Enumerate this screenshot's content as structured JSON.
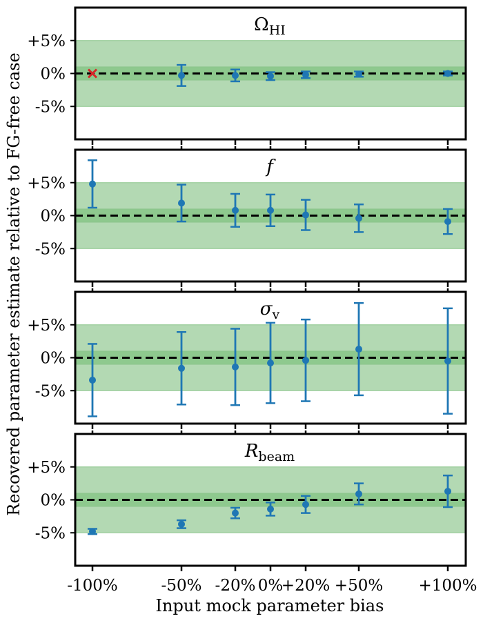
{
  "chart_data": {
    "type": "scatter",
    "xlabel": "Input mock parameter bias",
    "ylabel": "Recovered parameter estimate relative to FG-free case",
    "x_tick_labels": [
      "-100%",
      "-50%",
      "-20%",
      "0%",
      "+20%",
      "+50%",
      "+100%"
    ],
    "x_values": [
      -100,
      -50,
      -20,
      0,
      20,
      50,
      100
    ],
    "y_tick_labels": [
      "+5%",
      "0%",
      "-5%"
    ],
    "y_tick_values": [
      5,
      0,
      -5
    ],
    "ylim": [
      -10,
      10
    ],
    "reference_line": 0,
    "bands": [
      {
        "range": [
          -5,
          5
        ],
        "color": "#b3d9b3"
      },
      {
        "range": [
          -1,
          1
        ],
        "color": "#8ec98e"
      }
    ],
    "colors": {
      "points": "#1f77b4",
      "marker_x": "#d62728",
      "reference": "#000000"
    },
    "panels": [
      {
        "title_main": "Ω",
        "title_sub": "HI",
        "title_italic": false,
        "points": [
          {
            "x": -100,
            "y": 0.0,
            "err": 0.0,
            "marker": "x"
          },
          {
            "x": -50,
            "y": -0.3,
            "err": 1.6
          },
          {
            "x": -20,
            "y": -0.3,
            "err": 0.9
          },
          {
            "x": 0,
            "y": -0.4,
            "err": 0.6
          },
          {
            "x": 20,
            "y": -0.2,
            "err": 0.5
          },
          {
            "x": 50,
            "y": -0.1,
            "err": 0.4
          },
          {
            "x": 100,
            "y": 0.0,
            "err": 0.3
          }
        ]
      },
      {
        "title_main": "f",
        "title_sub": "",
        "title_italic": true,
        "points": [
          {
            "x": -100,
            "y": 4.8,
            "err": 3.6
          },
          {
            "x": -50,
            "y": 1.9,
            "err": 2.8
          },
          {
            "x": -20,
            "y": 0.8,
            "err": 2.5
          },
          {
            "x": 0,
            "y": 0.8,
            "err": 2.4
          },
          {
            "x": 20,
            "y": 0.1,
            "err": 2.3
          },
          {
            "x": 50,
            "y": -0.4,
            "err": 2.1
          },
          {
            "x": 100,
            "y": -0.9,
            "err": 1.9
          }
        ]
      },
      {
        "title_main": "σ",
        "title_sub": "v",
        "title_italic": true,
        "points": [
          {
            "x": -100,
            "y": -3.4,
            "err": 5.5
          },
          {
            "x": -50,
            "y": -1.6,
            "err": 5.5
          },
          {
            "x": -20,
            "y": -1.4,
            "err": 5.8
          },
          {
            "x": 0,
            "y": -0.8,
            "err": 6.1
          },
          {
            "x": 20,
            "y": -0.4,
            "err": 6.2
          },
          {
            "x": 50,
            "y": 1.3,
            "err": 7.0
          },
          {
            "x": 100,
            "y": -0.5,
            "err": 8.0
          }
        ]
      },
      {
        "title_main": "R",
        "title_sub": "beam",
        "title_italic": true,
        "points": [
          {
            "x": -100,
            "y": -4.8,
            "err": 0.4
          },
          {
            "x": -50,
            "y": -3.7,
            "err": 0.6
          },
          {
            "x": -20,
            "y": -2.0,
            "err": 0.8
          },
          {
            "x": 0,
            "y": -1.4,
            "err": 1.0
          },
          {
            "x": 20,
            "y": -0.7,
            "err": 1.3
          },
          {
            "x": 50,
            "y": 0.9,
            "err": 1.6
          },
          {
            "x": 100,
            "y": 1.3,
            "err": 2.4
          }
        ]
      }
    ]
  }
}
